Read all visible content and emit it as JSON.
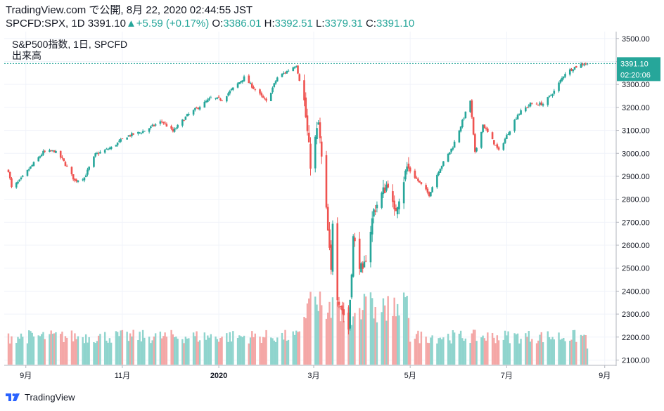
{
  "header": {
    "publish_line": "TradingView.com で公開, 8月 22, 2020 02:44:55 JST",
    "symbol": "SPCFD:SPX, 1D",
    "last": "3391.10",
    "change": "+5.59 (+0.17%)",
    "o_label": "O:",
    "o_value": "3386.01",
    "h_label": "H:",
    "h_value": "3392.51",
    "l_label": "L:",
    "l_value": "3379.31",
    "c_label": "C:",
    "c_value": "3391.10"
  },
  "legend": {
    "series": "S&P500指数, 1日, SPCFD",
    "volume": "出来高"
  },
  "price_badge": {
    "price": "3391.10",
    "countdown": "02:20:06"
  },
  "footer": {
    "brand": "TradingView"
  },
  "colors": {
    "up": "#26a69a",
    "down": "#ef5350",
    "vol_up": "#8fd4cd",
    "vol_down": "#f4a7a6",
    "grid": "#f0f3fa",
    "badge": "#26a69a"
  },
  "chart_data": {
    "type": "candlestick",
    "x_ticks": [
      "9月",
      "11月",
      "2020",
      "3月",
      "5月",
      "7月",
      "9月"
    ],
    "y_ticks": [
      "3500.00",
      "3400.00",
      "3300.00",
      "3200.00",
      "3100.00",
      "3000.00",
      "2900.00",
      "2800.00",
      "2700.00",
      "2600.00",
      "2500.00",
      "2400.00",
      "2300.00",
      "2200.00",
      "2100.00"
    ],
    "ylim": [
      2080,
      3530
    ],
    "last_price": 3391.1,
    "series": [
      {
        "name": "price",
        "close_path": [
          [
            "2019-08-21",
            2925
          ],
          [
            "2019-08-23",
            2850
          ],
          [
            "2019-08-28",
            2880
          ],
          [
            "2019-09-04",
            2940
          ],
          [
            "2019-09-12",
            3005
          ],
          [
            "2019-09-19",
            3010
          ],
          [
            "2019-09-24",
            2975
          ],
          [
            "2019-10-02",
            2880
          ],
          [
            "2019-10-08",
            2895
          ],
          [
            "2019-10-15",
            2995
          ],
          [
            "2019-10-25",
            3025
          ],
          [
            "2019-11-04",
            3075
          ],
          [
            "2019-11-14",
            3095
          ],
          [
            "2019-11-26",
            3140
          ],
          [
            "2019-12-03",
            3095
          ],
          [
            "2019-12-12",
            3165
          ],
          [
            "2019-12-27",
            3240
          ],
          [
            "2020-01-03",
            3235
          ],
          [
            "2020-01-17",
            3330
          ],
          [
            "2020-01-31",
            3225
          ],
          [
            "2020-02-07",
            3330
          ],
          [
            "2020-02-19",
            3385
          ],
          [
            "2020-02-24",
            3225
          ],
          [
            "2020-02-28",
            2955
          ],
          [
            "2020-03-04",
            3130
          ],
          [
            "2020-03-09",
            2745
          ],
          [
            "2020-03-12",
            2480
          ],
          [
            "2020-03-13",
            2710
          ],
          [
            "2020-03-16",
            2385
          ],
          [
            "2020-03-23",
            2235
          ],
          [
            "2020-03-26",
            2630
          ],
          [
            "2020-04-01",
            2470
          ],
          [
            "2020-04-08",
            2750
          ],
          [
            "2020-04-17",
            2875
          ],
          [
            "2020-04-21",
            2735
          ],
          [
            "2020-04-29",
            2940
          ],
          [
            "2020-05-13",
            2820
          ],
          [
            "2020-05-19",
            2925
          ],
          [
            "2020-05-28",
            3030
          ],
          [
            "2020-06-08",
            3230
          ],
          [
            "2020-06-11",
            3000
          ],
          [
            "2020-06-16",
            3125
          ],
          [
            "2020-06-26",
            3010
          ],
          [
            "2020-07-08",
            3170
          ],
          [
            "2020-07-16",
            3215
          ],
          [
            "2020-07-24",
            3215
          ],
          [
            "2020-07-31",
            3270
          ],
          [
            "2020-08-07",
            3350
          ],
          [
            "2020-08-13",
            3375
          ],
          [
            "2020-08-18",
            3390
          ],
          [
            "2020-08-21",
            3391.1
          ]
        ]
      },
      {
        "name": "volume",
        "note": "daily volume bars"
      }
    ]
  }
}
